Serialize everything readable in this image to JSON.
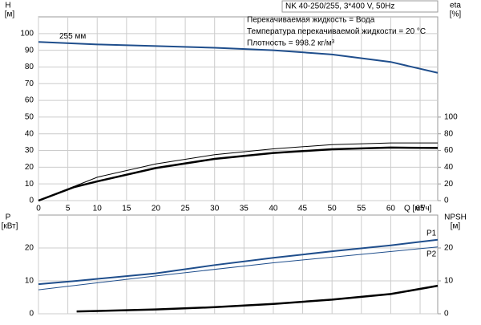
{
  "chart_data": [
    {
      "type": "line",
      "title": "NK 40-250/255, 3*400 V, 50Hz",
      "annotations": [
        "Перекачиваемая жидкость = Вода",
        "Температура перекачиваемой жидкости = 20 °C",
        "Плотность = 998.2 кг/м³"
      ],
      "ylabel": "H",
      "yunit": "[м]",
      "y2label": "eta",
      "y2unit": "[%]",
      "xlabel": "Q [м³/ч]",
      "xlim": [
        0,
        68
      ],
      "xticks": [
        0,
        5,
        10,
        15,
        20,
        25,
        30,
        35,
        40,
        45,
        50,
        55,
        60,
        65
      ],
      "ylim": [
        0,
        110
      ],
      "yticks": [
        0,
        10,
        20,
        30,
        40,
        50,
        60,
        70,
        80,
        90,
        100
      ],
      "y2lim": [
        0,
        220
      ],
      "y2ticks": [
        0,
        20,
        40,
        60,
        80,
        100
      ],
      "grid": true,
      "series": [
        {
          "name": "255 мм",
          "color": "#1f4e8c",
          "width": 2,
          "x": [
            0,
            10,
            20,
            30,
            40,
            50,
            60,
            68
          ],
          "values": [
            95,
            93.5,
            92.5,
            91.5,
            90,
            87.5,
            83,
            76.5
          ]
        },
        {
          "axis": "y2",
          "color": "#000000",
          "width": 1,
          "x": [
            0,
            10,
            20,
            30,
            40,
            50,
            60,
            68
          ],
          "values": [
            0,
            28,
            44,
            55,
            62,
            67,
            69,
            69
          ]
        },
        {
          "axis": "y2",
          "color": "#000000",
          "width": 2.5,
          "x": [
            0,
            6,
            10,
            20,
            30,
            40,
            50,
            60,
            68
          ],
          "values": [
            0,
            16,
            23,
            39,
            50,
            57,
            61.5,
            63.5,
            63
          ]
        }
      ]
    },
    {
      "type": "line",
      "ylabel": "P",
      "yunit": "[кВт]",
      "y2label": "NPSH",
      "y2unit": "[м]",
      "xlim": [
        0,
        68
      ],
      "xticks": [
        0,
        5,
        10,
        15,
        20,
        25,
        30,
        35,
        40,
        45,
        50,
        55,
        60,
        65
      ],
      "ylim": [
        0,
        30
      ],
      "yticks": [
        0,
        10,
        20
      ],
      "y2lim": [
        0,
        30
      ],
      "y2ticks": [
        0,
        10,
        20
      ],
      "grid": true,
      "series": [
        {
          "name": "P1",
          "color": "#1f4e8c",
          "width": 2,
          "x": [
            0,
            6.5,
            20,
            30,
            40,
            50,
            60,
            68
          ],
          "values": [
            9,
            10,
            12.3,
            14.8,
            17,
            19,
            20.8,
            22.5
          ]
        },
        {
          "name": "P2",
          "color": "#1f4e8c",
          "width": 1,
          "x": [
            0,
            20,
            40,
            68
          ],
          "values": [
            7.3,
            11.5,
            15.5,
            20.3
          ]
        },
        {
          "axis": "y2",
          "color": "#000000",
          "width": 2.5,
          "x": [
            6.5,
            20,
            30,
            40,
            50,
            60,
            68
          ],
          "values": [
            0.7,
            1.3,
            2,
            3,
            4.3,
            6,
            8.5
          ]
        }
      ]
    }
  ]
}
